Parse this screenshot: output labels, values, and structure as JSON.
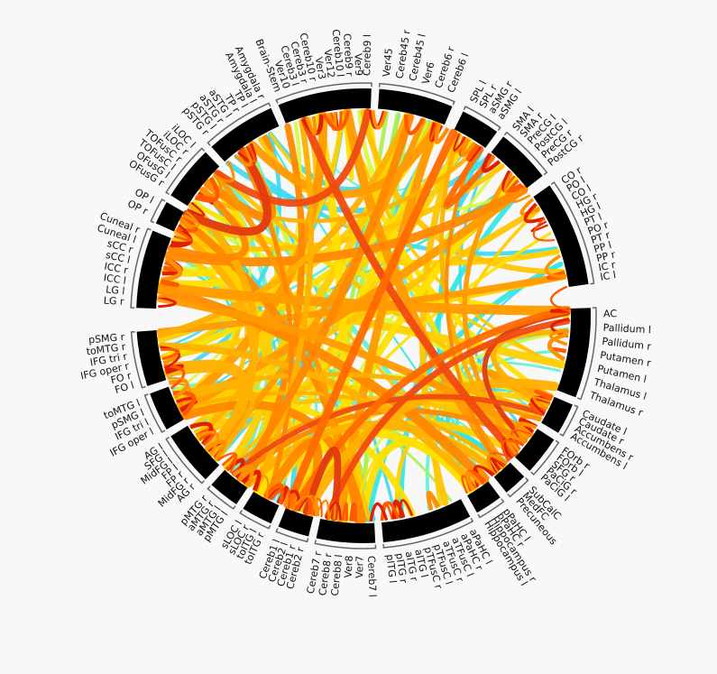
{
  "groups": [
    {
      "labels": [
        "Brain-Stem",
        "Ver10",
        "Cereb3 l",
        "Cereb3 r",
        "Cereb10 r",
        "Ver3",
        "Ver12",
        "Cereb10 l",
        "Cereb9 r",
        "Ver9",
        "Cereb9 l"
      ]
    },
    {
      "labels": [
        "Ver45",
        "Cereb45 r",
        "Cereb45 l",
        "Ver6",
        "Cereb6 r",
        "Cereb6 l"
      ]
    },
    {
      "labels": [
        "SPL l",
        "SPL r",
        "aSMG r",
        "aSMG l"
      ]
    },
    {
      "labels": [
        "SMA l",
        "SMA r",
        "PreCG l",
        "PostCG l",
        "PreCG r",
        "PostCG r"
      ]
    },
    {
      "labels": [
        "CO r",
        "PO l",
        "CO l",
        "HG r",
        "HG l",
        "PT l",
        "PO r",
        "PT r",
        "PP l",
        "PP r",
        "IC r",
        "IC l"
      ]
    },
    {
      "labels": [
        "AC",
        "Pallidum l",
        "Pallidum r",
        "Putamen r",
        "Putamen l",
        "Thalamus l",
        "Thalamus r"
      ]
    },
    {
      "labels": [
        "Caudate l",
        "Caudate r",
        "Accumbens r",
        "Accumbens l"
      ]
    },
    {
      "labels": [
        "FOrb r",
        "FOrb l",
        "SFG r",
        "PaCiG r",
        "PaCiG l"
      ]
    },
    {
      "labels": [
        "SubCalC",
        "MedFC",
        "Precuneous"
      ]
    },
    {
      "labels": [
        "pPaHC l",
        "pPaHC r",
        "Hippocampus r",
        "Hippocampus l"
      ]
    },
    {
      "labels": [
        "aPaHC l",
        "aPaHC r",
        "aTFusC l",
        "aTFusC r",
        "pTFusC l",
        "pTFusC r",
        "aITG l",
        "aITG r",
        "pITG r",
        "pITG l"
      ]
    },
    {
      "labels": [
        "Cereb7 l",
        "Ver7",
        "Ver8",
        "Cereb8 l",
        "Cereb8 r",
        "Cereb7 r"
      ]
    },
    {
      "labels": [
        "Cereb2 r",
        "Cereb1 r",
        "Cereb2 l",
        "Cereb1 l"
      ]
    },
    {
      "labels": [
        "toITG r",
        "toITG l",
        "sLOC r",
        "sLOC l"
      ]
    },
    {
      "labels": [
        "pMTG l",
        "aMTG l",
        "aMTG r",
        "pMTG r"
      ]
    },
    {
      "labels": [
        "AG r",
        "MidFG r",
        "FP r",
        "FP l",
        "MidFG l",
        "SFG l",
        "AG l"
      ]
    },
    {
      "labels": [
        "IFG oper l",
        "IFG tri l",
        "pSMG l",
        "toMTG l"
      ]
    },
    {
      "labels": [
        "FO l",
        "FO r",
        "IFG oper r",
        "IFG tri r",
        "toMTG r",
        "pSMG r"
      ]
    },
    {
      "labels": [
        "LG r",
        "LG l",
        "ICC l",
        "ICC r",
        "sCC l",
        "sCC r",
        "Cuneal l",
        "Cuneal r"
      ]
    },
    {
      "labels": [
        "OP r",
        "OP l"
      ]
    },
    {
      "labels": [
        "OFusG r",
        "OFusG l",
        "TOFusC l",
        "TOFusC r",
        "iLOC r",
        "iLOC l"
      ]
    },
    {
      "labels": [
        "pSTG r",
        "pSTG l",
        "aSTG r",
        "aSTG l",
        "TP r",
        "TP l",
        "Amygdala l",
        "Amygdala r"
      ]
    }
  ]
}
